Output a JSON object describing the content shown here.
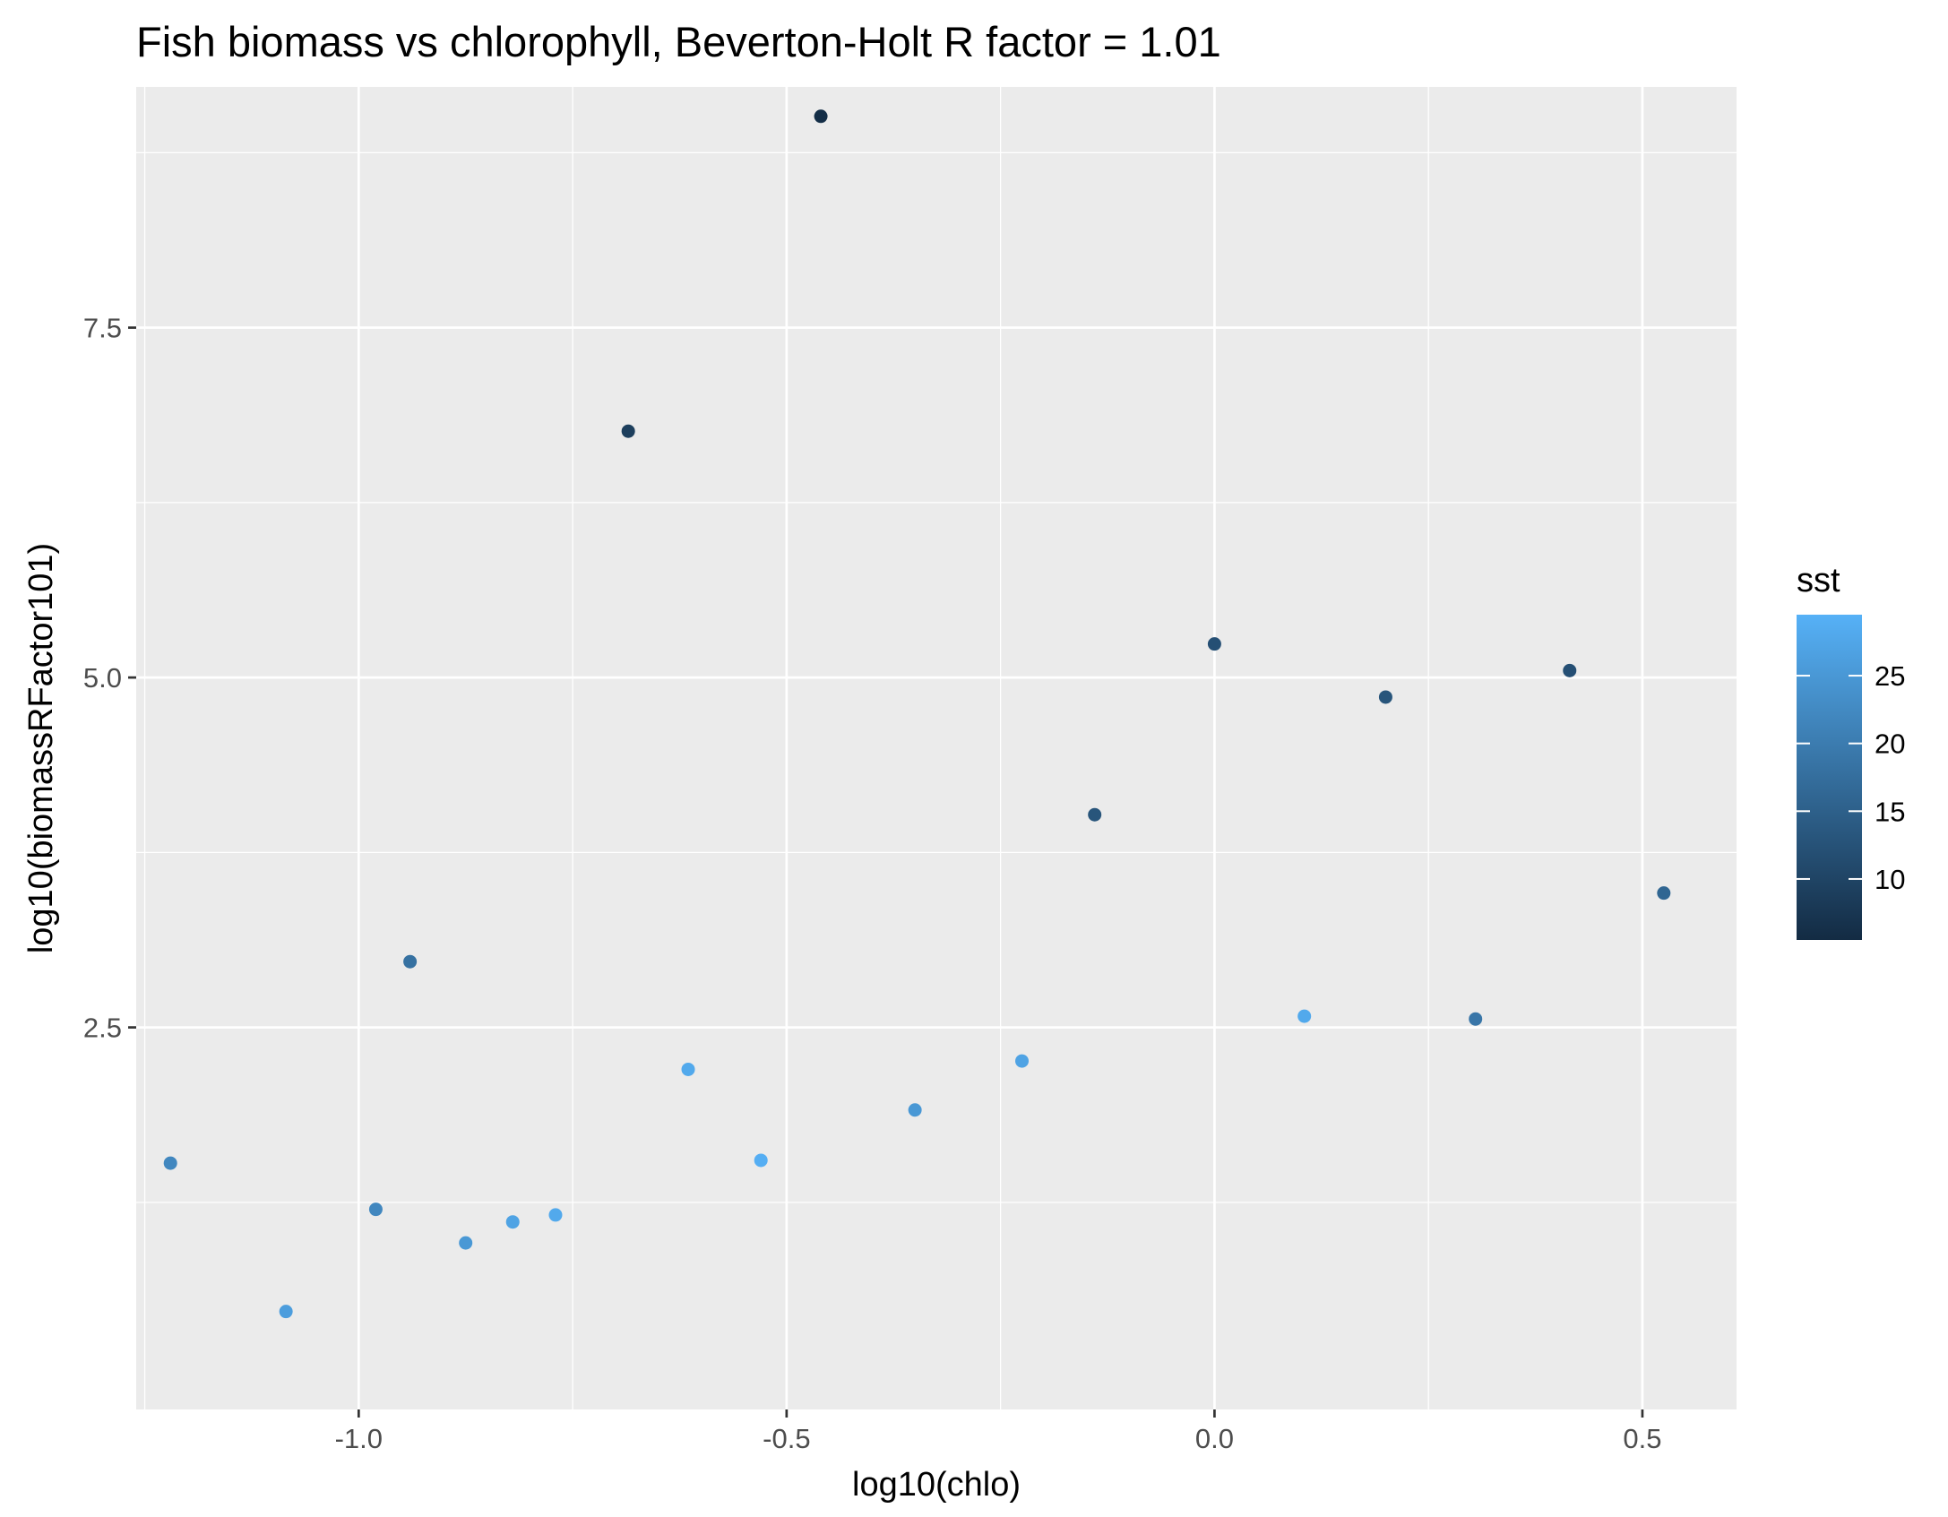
{
  "chart_data": {
    "type": "scatter",
    "title": "Fish biomass vs chlorophyll, Beverton-Holt R factor = 1.01",
    "xlabel": "log10(chlo)",
    "ylabel": "log10(biomassRFactor101)",
    "xlim": [
      -1.26,
      0.61
    ],
    "ylim": [
      -0.23,
      9.22
    ],
    "x_ticks": [
      -1.0,
      -0.5,
      0.0,
      0.5
    ],
    "x_tick_labels": [
      "-1.0",
      "-0.5",
      "0.0",
      "0.5"
    ],
    "y_ticks": [
      2.5,
      5.0,
      7.5
    ],
    "y_tick_labels": [
      "2.5",
      "5.0",
      "7.5"
    ],
    "grid": true,
    "background": "#ebebeb",
    "grid_color": "#ffffff",
    "legend": {
      "title": "sst",
      "position": "right",
      "type": "colorbar",
      "range": [
        5.5,
        29.5
      ],
      "ticks": [
        10,
        15,
        20,
        25
      ],
      "tick_labels": [
        "10",
        "15",
        "20",
        "25"
      ],
      "color_low": "#132b43",
      "color_high": "#56b1f7"
    },
    "color_variable": "sst",
    "points": [
      {
        "x": -1.22,
        "y": 1.53,
        "sst": 22
      },
      {
        "x": -1.085,
        "y": 0.47,
        "sst": 26
      },
      {
        "x": -0.98,
        "y": 1.2,
        "sst": 22
      },
      {
        "x": -0.94,
        "y": 2.97,
        "sst": 18
      },
      {
        "x": -0.875,
        "y": 0.96,
        "sst": 25
      },
      {
        "x": -0.82,
        "y": 1.11,
        "sst": 27
      },
      {
        "x": -0.77,
        "y": 1.16,
        "sst": 28
      },
      {
        "x": -0.685,
        "y": 6.76,
        "sst": 9
      },
      {
        "x": -0.615,
        "y": 2.2,
        "sst": 28
      },
      {
        "x": -0.53,
        "y": 1.55,
        "sst": 29
      },
      {
        "x": -0.46,
        "y": 9.01,
        "sst": 6
      },
      {
        "x": -0.35,
        "y": 1.91,
        "sst": 25
      },
      {
        "x": -0.225,
        "y": 2.26,
        "sst": 27
      },
      {
        "x": -0.14,
        "y": 4.02,
        "sst": 13
      },
      {
        "x": 0.0,
        "y": 5.24,
        "sst": 12
      },
      {
        "x": 0.105,
        "y": 2.58,
        "sst": 28
      },
      {
        "x": 0.2,
        "y": 4.86,
        "sst": 13
      },
      {
        "x": 0.305,
        "y": 2.56,
        "sst": 19
      },
      {
        "x": 0.415,
        "y": 5.05,
        "sst": 12
      },
      {
        "x": 0.525,
        "y": 3.46,
        "sst": 16
      }
    ]
  }
}
